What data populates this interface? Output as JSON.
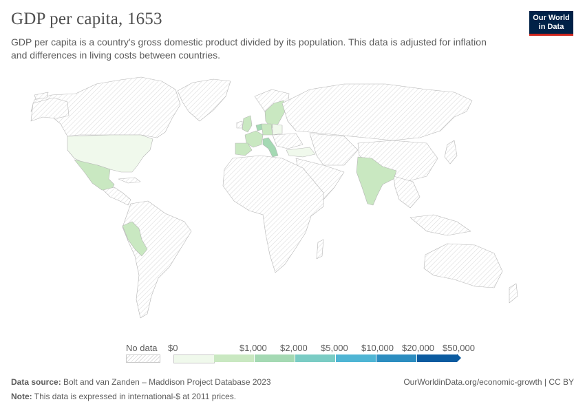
{
  "header": {
    "title": "GDP per capita, 1653",
    "subtitle": "GDP per capita is a country's gross domestic product divided by its population. This data is adjusted for inflation and differences in living costs between countries."
  },
  "logo": {
    "line1": "Our World",
    "line2": "in Data"
  },
  "legend": {
    "no_data_label": "No data",
    "bins": [
      {
        "label": "$0",
        "color": "#f0f9ec"
      },
      {
        "label": "$1,000",
        "color": "#c9e8c1"
      },
      {
        "label": "$2,000",
        "color": "#a4d9b3"
      },
      {
        "label": "$5,000",
        "color": "#7accc4"
      },
      {
        "label": "$10,000",
        "color": "#4fb5d4"
      },
      {
        "label": "$20,000",
        "color": "#2c8dc0"
      },
      {
        "label": "$50,000",
        "color": "#0b5ba0"
      }
    ]
  },
  "colors": {
    "no_data_fill": "#ffffff",
    "no_data_hatch": "#dcdcdc",
    "border": "#b5b5b5",
    "low": "#f0f9ec",
    "mid": "#c9e8c1",
    "high": "#a4d9b3"
  },
  "regions_with_data": [
    {
      "name": "United States",
      "bin": "$0"
    },
    {
      "name": "Mexico",
      "bin": "$1,000"
    },
    {
      "name": "Peru",
      "bin": "$1,000"
    },
    {
      "name": "United Kingdom",
      "bin": "$1,000"
    },
    {
      "name": "France",
      "bin": "$1,000"
    },
    {
      "name": "Spain",
      "bin": "$1,000"
    },
    {
      "name": "Italy",
      "bin": "$2,000"
    },
    {
      "name": "Netherlands",
      "bin": "$2,000"
    },
    {
      "name": "Germany",
      "bin": "$1,000"
    },
    {
      "name": "Sweden",
      "bin": "$1,000"
    },
    {
      "name": "Poland",
      "bin": "$0"
    },
    {
      "name": "Turkey",
      "bin": "$0"
    },
    {
      "name": "India",
      "bin": "$1,000"
    }
  ],
  "footer": {
    "source_label": "Data source:",
    "source_text": "Bolt and van Zanden – Maddison Project Database 2023",
    "note_label": "Note:",
    "note_text": "This data is expressed in international-$ at 2011 prices.",
    "right_text": "OurWorldinData.org/economic-growth | CC BY"
  }
}
